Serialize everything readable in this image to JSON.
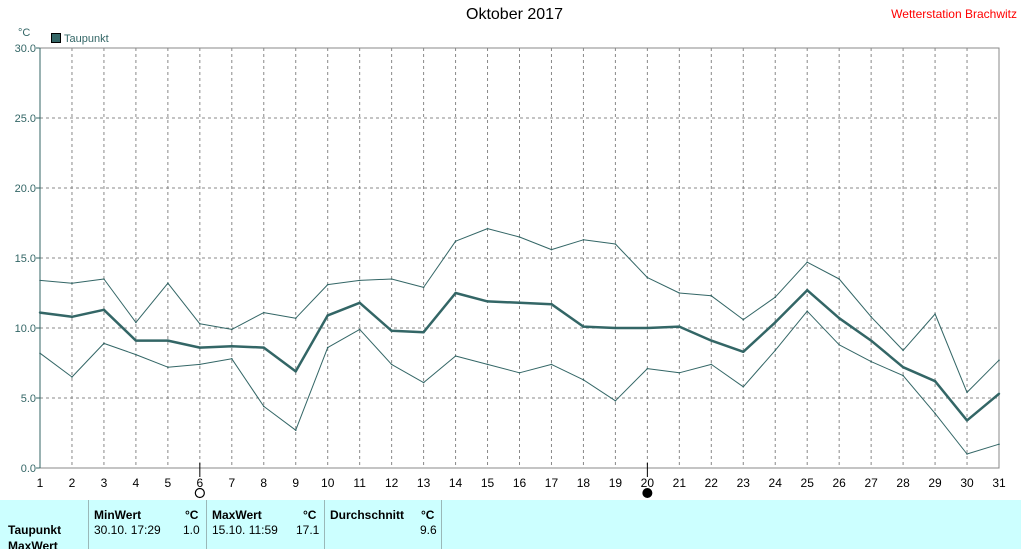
{
  "header": {
    "title": "Oktober 2017",
    "station": "Wetterstation Brachwitz"
  },
  "chart_data": {
    "type": "line",
    "unit_label": "°C",
    "legend": [
      {
        "label": "Taupunkt",
        "color": "#336666"
      }
    ],
    "ylim": [
      0,
      30
    ],
    "yticks": [
      "0.0",
      "5.0",
      "10.0",
      "15.0",
      "20.0",
      "25.0",
      "30.0"
    ],
    "xlim": [
      1,
      31
    ],
    "x": [
      1,
      2,
      3,
      4,
      5,
      6,
      7,
      8,
      9,
      10,
      11,
      12,
      13,
      14,
      15,
      16,
      17,
      18,
      19,
      20,
      21,
      22,
      23,
      24,
      25,
      26,
      27,
      28,
      29,
      30,
      31
    ],
    "grid": true,
    "series": [
      {
        "name": "Taupunkt",
        "role": "mean",
        "color": "#336666",
        "values": [
          11.1,
          10.8,
          11.3,
          9.1,
          9.1,
          8.6,
          8.7,
          8.6,
          6.9,
          10.9,
          11.8,
          9.8,
          9.7,
          12.5,
          11.9,
          11.8,
          11.7,
          10.1,
          10.0,
          10.0,
          10.1,
          9.1,
          8.3,
          10.4,
          12.7,
          10.7,
          9.1,
          7.2,
          6.2,
          3.4,
          5.3
        ]
      },
      {
        "role": "max",
        "color": "#336666",
        "values": [
          13.4,
          13.2,
          13.5,
          10.4,
          13.2,
          10.3,
          9.9,
          11.1,
          10.7,
          13.1,
          13.4,
          13.5,
          12.9,
          16.2,
          17.1,
          16.5,
          15.6,
          16.3,
          16.0,
          13.6,
          12.5,
          12.3,
          10.6,
          12.2,
          14.7,
          13.5,
          10.8,
          8.4,
          11.0,
          5.4,
          7.7
        ]
      },
      {
        "role": "min",
        "color": "#336666",
        "values": [
          8.2,
          6.5,
          8.9,
          8.1,
          7.2,
          7.4,
          7.8,
          4.4,
          2.7,
          8.6,
          9.9,
          7.4,
          6.1,
          8.0,
          7.4,
          6.8,
          7.4,
          6.3,
          4.8,
          7.1,
          6.8,
          7.4,
          5.8,
          8.4,
          11.2,
          8.8,
          7.6,
          6.6,
          3.9,
          1.0,
          1.7
        ]
      }
    ],
    "moon_markers": [
      {
        "day": 6,
        "type": "full"
      },
      {
        "day": 20,
        "type": "new"
      }
    ]
  },
  "stats": {
    "headers": {
      "min": "MinWert",
      "max": "MaxWert",
      "avg": "Durchschnitt",
      "unit": "°C"
    },
    "rows": [
      {
        "label": "Taupunkt",
        "min_time": "30.10.  17:29",
        "min_val": "1.0",
        "max_time": "15.10.  11:59",
        "max_val": "17.1",
        "avg": "9.6"
      },
      {
        "label": "MaxWert"
      }
    ]
  }
}
